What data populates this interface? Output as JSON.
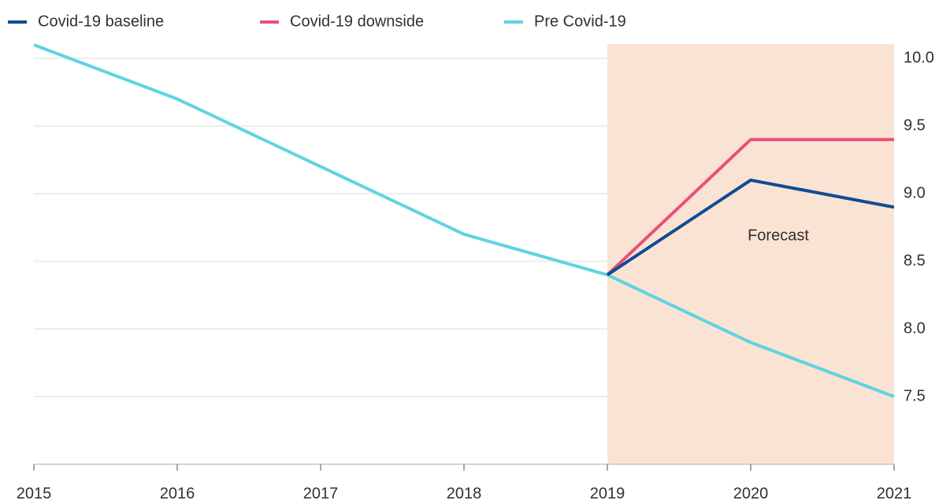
{
  "chart_data": {
    "type": "line",
    "x": [
      2015,
      2016,
      2017,
      2018,
      2019,
      2020,
      2021
    ],
    "series": [
      {
        "name": "Covid-19 baseline",
        "color": "#0f4c91",
        "values": [
          null,
          null,
          null,
          null,
          8.4,
          9.1,
          8.9
        ]
      },
      {
        "name": "Covid-19 downside",
        "color": "#e8507a",
        "values": [
          null,
          null,
          null,
          null,
          8.4,
          9.4,
          9.4
        ]
      },
      {
        "name": "Pre Covid-19",
        "color": "#5fd4e0",
        "values": [
          10.1,
          9.7,
          9.2,
          8.7,
          8.4,
          7.9,
          7.5
        ]
      }
    ],
    "xlim": [
      2015,
      2021
    ],
    "xticks": [
      2015,
      2016,
      2017,
      2018,
      2019,
      2020,
      2021
    ],
    "ylim": [
      7,
      10.1
    ],
    "yticks": [
      {
        "value": 7.5,
        "label": "7.5"
      },
      {
        "value": 8,
        "label": "8.0"
      },
      {
        "value": 8.5,
        "label": "8.5"
      },
      {
        "value": 9,
        "label": "9.0"
      },
      {
        "value": 9.5,
        "label": "9.5"
      },
      {
        "value": 10,
        "label": "10.0"
      }
    ],
    "shaded_region": {
      "x": [
        2019,
        2021
      ],
      "label": "Forecast",
      "color": "#fbe3d3"
    },
    "grid": true,
    "legend": "top"
  }
}
